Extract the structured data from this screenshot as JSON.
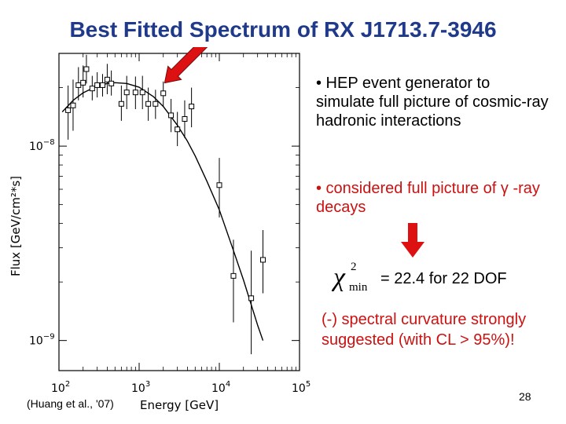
{
  "slide": {
    "title": "Best Fitted Spectrum of RX J1713.7-3946",
    "bullet1": "•  HEP event generator to simulate full picture of cosmic-ray hadronic interactions",
    "bullet2": "• considered full picture of γ -ray decays",
    "chi_symbol": "χ",
    "chi_sup": "2",
    "chi_sub": "min",
    "chi_value": "= 22.4 for 22 DOF",
    "result": "(-) spectral curvature strongly suggested (with CL > 95%)!",
    "citation": "(Huang et al., '07)",
    "page_number": "28",
    "colors": {
      "title": "#1f3a8a",
      "highlight": "#cc1111",
      "arrow": "#dd1111"
    }
  },
  "chart_data": {
    "type": "scatter",
    "x_scale": "log",
    "y_scale": "log",
    "xlim": [
      100,
      100000
    ],
    "ylim": [
      7e-10,
      3e-08
    ],
    "x_ticks": [
      {
        "value": 100,
        "base": "10",
        "exp": "2"
      },
      {
        "value": 1000,
        "base": "10",
        "exp": "3"
      },
      {
        "value": 10000,
        "base": "10",
        "exp": "4"
      },
      {
        "value": 100000,
        "base": "10",
        "exp": "5"
      }
    ],
    "y_ticks": [
      {
        "value": 1e-09,
        "base": "10",
        "exp": "−9"
      },
      {
        "value": 1e-08,
        "base": "10",
        "exp": "−8"
      }
    ],
    "xlabel": "Energy  [GeV]",
    "ylabel": "Flux  [GeV/cm²*s]",
    "grid": false,
    "points": [
      {
        "x": 130,
        "y": 1.53e-08,
        "lo": 1.08e-08,
        "hi": 2.05e-08
      },
      {
        "x": 150,
        "y": 1.62e-08,
        "lo": 1.2e-08,
        "hi": 2.2e-08
      },
      {
        "x": 175,
        "y": 2.06e-08,
        "lo": 1.72e-08,
        "hi": 2.55e-08
      },
      {
        "x": 200,
        "y": 2.12e-08,
        "lo": 1.78e-08,
        "hi": 2.6e-08
      },
      {
        "x": 220,
        "y": 2.49e-08,
        "lo": 2.1e-08,
        "hi": 2.95e-08
      },
      {
        "x": 260,
        "y": 1.98e-08,
        "lo": 1.72e-08,
        "hi": 2.3e-08
      },
      {
        "x": 300,
        "y": 2.06e-08,
        "lo": 1.78e-08,
        "hi": 2.4e-08
      },
      {
        "x": 350,
        "y": 2.06e-08,
        "lo": 1.8e-08,
        "hi": 2.35e-08
      },
      {
        "x": 400,
        "y": 2.2e-08,
        "lo": 1.85e-08,
        "hi": 2.65e-08
      },
      {
        "x": 450,
        "y": 2.1e-08,
        "lo": 1.82e-08,
        "hi": 2.45e-08
      },
      {
        "x": 600,
        "y": 1.65e-08,
        "lo": 1.35e-08,
        "hi": 2.05e-08
      },
      {
        "x": 700,
        "y": 1.89e-08,
        "lo": 1.55e-08,
        "hi": 2.3e-08
      },
      {
        "x": 900,
        "y": 1.89e-08,
        "lo": 1.55e-08,
        "hi": 2.28e-08
      },
      {
        "x": 1100,
        "y": 1.89e-08,
        "lo": 1.55e-08,
        "hi": 2.3e-08
      },
      {
        "x": 1300,
        "y": 1.65e-08,
        "lo": 1.35e-08,
        "hi": 2e-08
      },
      {
        "x": 1600,
        "y": 1.65e-08,
        "lo": 1.38e-08,
        "hi": 1.95e-08
      },
      {
        "x": 2000,
        "y": 1.87e-08,
        "lo": 1.6e-08,
        "hi": 2.15e-08
      },
      {
        "x": 2500,
        "y": 1.44e-08,
        "lo": 1.18e-08,
        "hi": 1.75e-08
      },
      {
        "x": 3000,
        "y": 1.22e-08,
        "lo": 1e-08,
        "hi": 1.5e-08
      },
      {
        "x": 3700,
        "y": 1.38e-08,
        "lo": 1.1e-08,
        "hi": 1.72e-08
      },
      {
        "x": 4500,
        "y": 1.6e-08,
        "lo": 1.25e-08,
        "hi": 2e-08
      },
      {
        "x": 10000,
        "y": 6.3e-09,
        "lo": 4.3e-09,
        "hi": 8.7e-09
      },
      {
        "x": 15000,
        "y": 2.15e-09,
        "lo": 1.24e-09,
        "hi": 3.3e-09
      },
      {
        "x": 25000,
        "y": 1.65e-09,
        "lo": 8.5e-10,
        "hi": 2.9e-09
      },
      {
        "x": 35000,
        "y": 2.6e-09,
        "lo": 1.75e-09,
        "hi": 3.7e-09
      }
    ],
    "fit_curve": {
      "x": [
        110,
        150,
        200,
        300,
        400,
        500,
        700,
        1000,
        1500,
        2000,
        3000,
        4000,
        5000,
        7000,
        10000,
        15000,
        20000,
        30000,
        35000
      ],
      "y": [
        1.5e-08,
        1.72e-08,
        1.88e-08,
        2.04e-08,
        2.1e-08,
        2.12e-08,
        2.1e-08,
        2.01e-08,
        1.8e-08,
        1.6e-08,
        1.28e-08,
        1.06e-08,
        8.9e-09,
        6.6e-09,
        4.7e-09,
        2.9e-09,
        2.05e-09,
        1.2e-09,
        1e-09
      ]
    },
    "annotation_arrow_to": {
      "x": 1900,
      "y": 2e-08
    }
  }
}
